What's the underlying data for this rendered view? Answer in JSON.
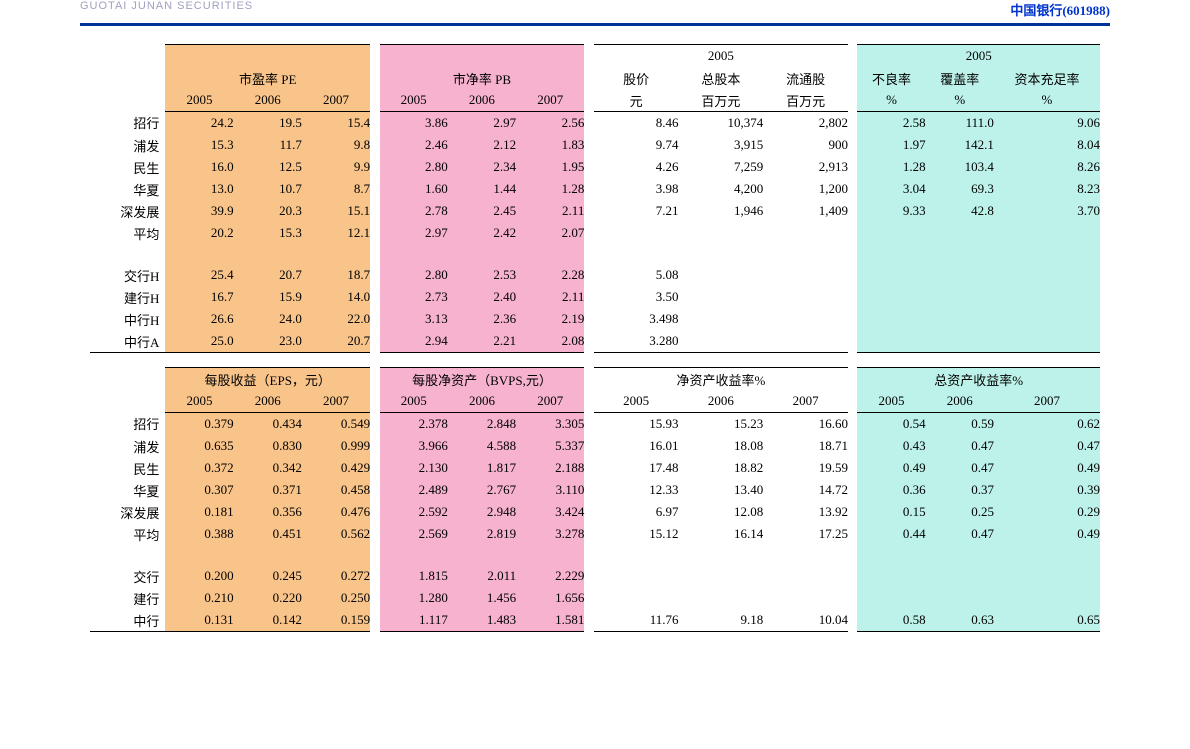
{
  "header": {
    "logo_text": "GUOTAI JUNAN SECURITIES",
    "right_text": "中国银行(601988)"
  },
  "colors": {
    "header_bar": "#003399",
    "orange": "#f9c48a",
    "pink": "#f6b2cf",
    "cyan": "#bdf2ea",
    "white": "#ffffff"
  },
  "table1": {
    "super_right": "2005",
    "super_cyan": "2005",
    "group_headers": {
      "pe": "市盈率 PE",
      "pb": "市净率 PB",
      "price": "股价",
      "total_shares": "总股本",
      "float_shares": "流通股",
      "npl": "不良率",
      "coverage": "覆盖率",
      "car": "资本充足率"
    },
    "year_row": [
      "2005",
      "2006",
      "2007",
      "2005",
      "2006",
      "2007",
      "元",
      "百万元",
      "百万元",
      "%",
      "%",
      "%"
    ],
    "rows": [
      {
        "label": "招行",
        "pe": [
          "24.2",
          "19.5",
          "15.4"
        ],
        "pb": [
          "3.86",
          "2.97",
          "2.56"
        ],
        "price": "8.46",
        "tot": "10,374",
        "float": "2,802",
        "npl": "2.58",
        "cov": "111.0",
        "car": "9.06"
      },
      {
        "label": "浦发",
        "pe": [
          "15.3",
          "11.7",
          "9.8"
        ],
        "pb": [
          "2.46",
          "2.12",
          "1.83"
        ],
        "price": "9.74",
        "tot": "3,915",
        "float": "900",
        "npl": "1.97",
        "cov": "142.1",
        "car": "8.04"
      },
      {
        "label": "民生",
        "pe": [
          "16.0",
          "12.5",
          "9.9"
        ],
        "pb": [
          "2.80",
          "2.34",
          "1.95"
        ],
        "price": "4.26",
        "tot": "7,259",
        "float": "2,913",
        "npl": "1.28",
        "cov": "103.4",
        "car": "8.26"
      },
      {
        "label": "华夏",
        "pe": [
          "13.0",
          "10.7",
          "8.7"
        ],
        "pb": [
          "1.60",
          "1.44",
          "1.28"
        ],
        "price": "3.98",
        "tot": "4,200",
        "float": "1,200",
        "npl": "3.04",
        "cov": "69.3",
        "car": "8.23"
      },
      {
        "label": "深发展",
        "pe": [
          "39.9",
          "20.3",
          "15.1"
        ],
        "pb": [
          "2.78",
          "2.45",
          "2.11"
        ],
        "price": "7.21",
        "tot": "1,946",
        "float": "1,409",
        "npl": "9.33",
        "cov": "42.8",
        "car": "3.70"
      },
      {
        "label": "平均",
        "pe": [
          "20.2",
          "15.3",
          "12.1"
        ],
        "pb": [
          "2.97",
          "2.42",
          "2.07"
        ],
        "price": "",
        "tot": "",
        "float": "",
        "npl": "",
        "cov": "",
        "car": ""
      }
    ],
    "rows2": [
      {
        "label": "交行H",
        "pe": [
          "25.4",
          "20.7",
          "18.7"
        ],
        "pb": [
          "2.80",
          "2.53",
          "2.28"
        ],
        "price": "5.08",
        "tot": "",
        "float": "",
        "npl": "",
        "cov": "",
        "car": ""
      },
      {
        "label": "建行H",
        "pe": [
          "16.7",
          "15.9",
          "14.0"
        ],
        "pb": [
          "2.73",
          "2.40",
          "2.11"
        ],
        "price": "3.50",
        "tot": "",
        "float": "",
        "npl": "",
        "cov": "",
        "car": ""
      },
      {
        "label": "中行H",
        "pe": [
          "26.6",
          "24.0",
          "22.0"
        ],
        "pb": [
          "3.13",
          "2.36",
          "2.19"
        ],
        "price": "3.498",
        "tot": "",
        "float": "",
        "npl": "",
        "cov": "",
        "car": ""
      },
      {
        "label": "中行A",
        "pe": [
          "25.0",
          "23.0",
          "20.7"
        ],
        "pb": [
          "2.94",
          "2.21",
          "2.08"
        ],
        "price": "3.280",
        "tot": "",
        "float": "",
        "npl": "",
        "cov": "",
        "car": ""
      }
    ]
  },
  "table2": {
    "group_headers": {
      "eps": "每股收益（EPS，元）",
      "bvps": "每股净资产（BVPS,元）",
      "roe": "净资产收益率%",
      "roa": "总资产收益率%"
    },
    "year_row": [
      "2005",
      "2006",
      "2007",
      "2005",
      "2006",
      "2007",
      "2005",
      "2006",
      "2007",
      "2005",
      "2006",
      "2007"
    ],
    "rows": [
      {
        "label": "招行",
        "eps": [
          "0.379",
          "0.434",
          "0.549"
        ],
        "bvps": [
          "2.378",
          "2.848",
          "3.305"
        ],
        "roe": [
          "15.93",
          "15.23",
          "16.60"
        ],
        "roa": [
          "0.54",
          "0.59",
          "0.62"
        ]
      },
      {
        "label": "浦发",
        "eps": [
          "0.635",
          "0.830",
          "0.999"
        ],
        "bvps": [
          "3.966",
          "4.588",
          "5.337"
        ],
        "roe": [
          "16.01",
          "18.08",
          "18.71"
        ],
        "roa": [
          "0.43",
          "0.47",
          "0.47"
        ]
      },
      {
        "label": "民生",
        "eps": [
          "0.372",
          "0.342",
          "0.429"
        ],
        "bvps": [
          "2.130",
          "1.817",
          "2.188"
        ],
        "roe": [
          "17.48",
          "18.82",
          "19.59"
        ],
        "roa": [
          "0.49",
          "0.47",
          "0.49"
        ]
      },
      {
        "label": "华夏",
        "eps": [
          "0.307",
          "0.371",
          "0.458"
        ],
        "bvps": [
          "2.489",
          "2.767",
          "3.110"
        ],
        "roe": [
          "12.33",
          "13.40",
          "14.72"
        ],
        "roa": [
          "0.36",
          "0.37",
          "0.39"
        ]
      },
      {
        "label": "深发展",
        "eps": [
          "0.181",
          "0.356",
          "0.476"
        ],
        "bvps": [
          "2.592",
          "2.948",
          "3.424"
        ],
        "roe": [
          "6.97",
          "12.08",
          "13.92"
        ],
        "roa": [
          "0.15",
          "0.25",
          "0.29"
        ]
      },
      {
        "label": "平均",
        "eps": [
          "0.388",
          "0.451",
          "0.562"
        ],
        "bvps": [
          "2.569",
          "2.819",
          "3.278"
        ],
        "roe": [
          "15.12",
          "16.14",
          "17.25"
        ],
        "roa": [
          "0.44",
          "0.47",
          "0.49"
        ]
      }
    ],
    "rows2": [
      {
        "label": "交行",
        "eps": [
          "0.200",
          "0.245",
          "0.272"
        ],
        "bvps": [
          "1.815",
          "2.011",
          "2.229"
        ],
        "roe": [
          "",
          "",
          ""
        ],
        "roa": [
          "",
          "",
          ""
        ]
      },
      {
        "label": "建行",
        "eps": [
          "0.210",
          "0.220",
          "0.250"
        ],
        "bvps": [
          "1.280",
          "1.456",
          "1.656"
        ],
        "roe": [
          "",
          "",
          ""
        ],
        "roa": [
          "",
          "",
          ""
        ]
      },
      {
        "label": "中行",
        "eps": [
          "0.131",
          "0.142",
          "0.159"
        ],
        "bvps": [
          "1.117",
          "1.483",
          "1.581"
        ],
        "roe": [
          "11.76",
          "9.18",
          "10.04"
        ],
        "roa": [
          "0.58",
          "0.63",
          "0.65"
        ]
      }
    ]
  }
}
